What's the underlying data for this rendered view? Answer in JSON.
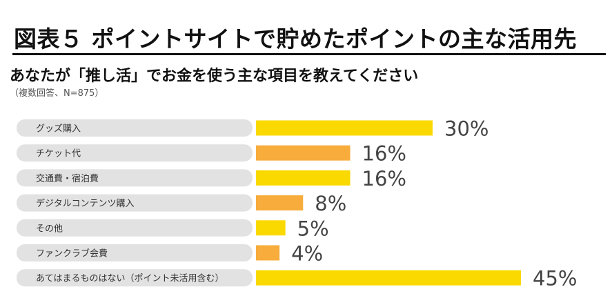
{
  "header": {
    "title": "図表５ ポイントサイトで貯めたポイントの主な活用先",
    "question": "あなたが「推し活」でお金を使う主な項目を教えてください",
    "note": "（複数回答、N=875）"
  },
  "colors": {
    "yellow": "#FAD900",
    "orange": "#F7AC3B",
    "label_bg": "#E2E2E2"
  },
  "chart_data": {
    "type": "bar",
    "orientation": "horizontal",
    "categories": [
      "グッズ購入",
      "チケット代",
      "交通費・宿泊費",
      "デジタルコンテンツ購入",
      "その他",
      "ファンクラブ会費",
      "あてはまるものはない（ポイント未活用含む）"
    ],
    "values": [
      30,
      16,
      16,
      8,
      5,
      4,
      45
    ],
    "value_labels": [
      "30%",
      "16%",
      "16%",
      "8%",
      "5%",
      "4%",
      "45%"
    ],
    "bar_colors": [
      "yellow",
      "orange",
      "yellow",
      "orange",
      "yellow",
      "orange",
      "yellow"
    ],
    "unit": "%",
    "xlim": [
      0,
      45
    ],
    "grid": false,
    "legend": "none"
  }
}
